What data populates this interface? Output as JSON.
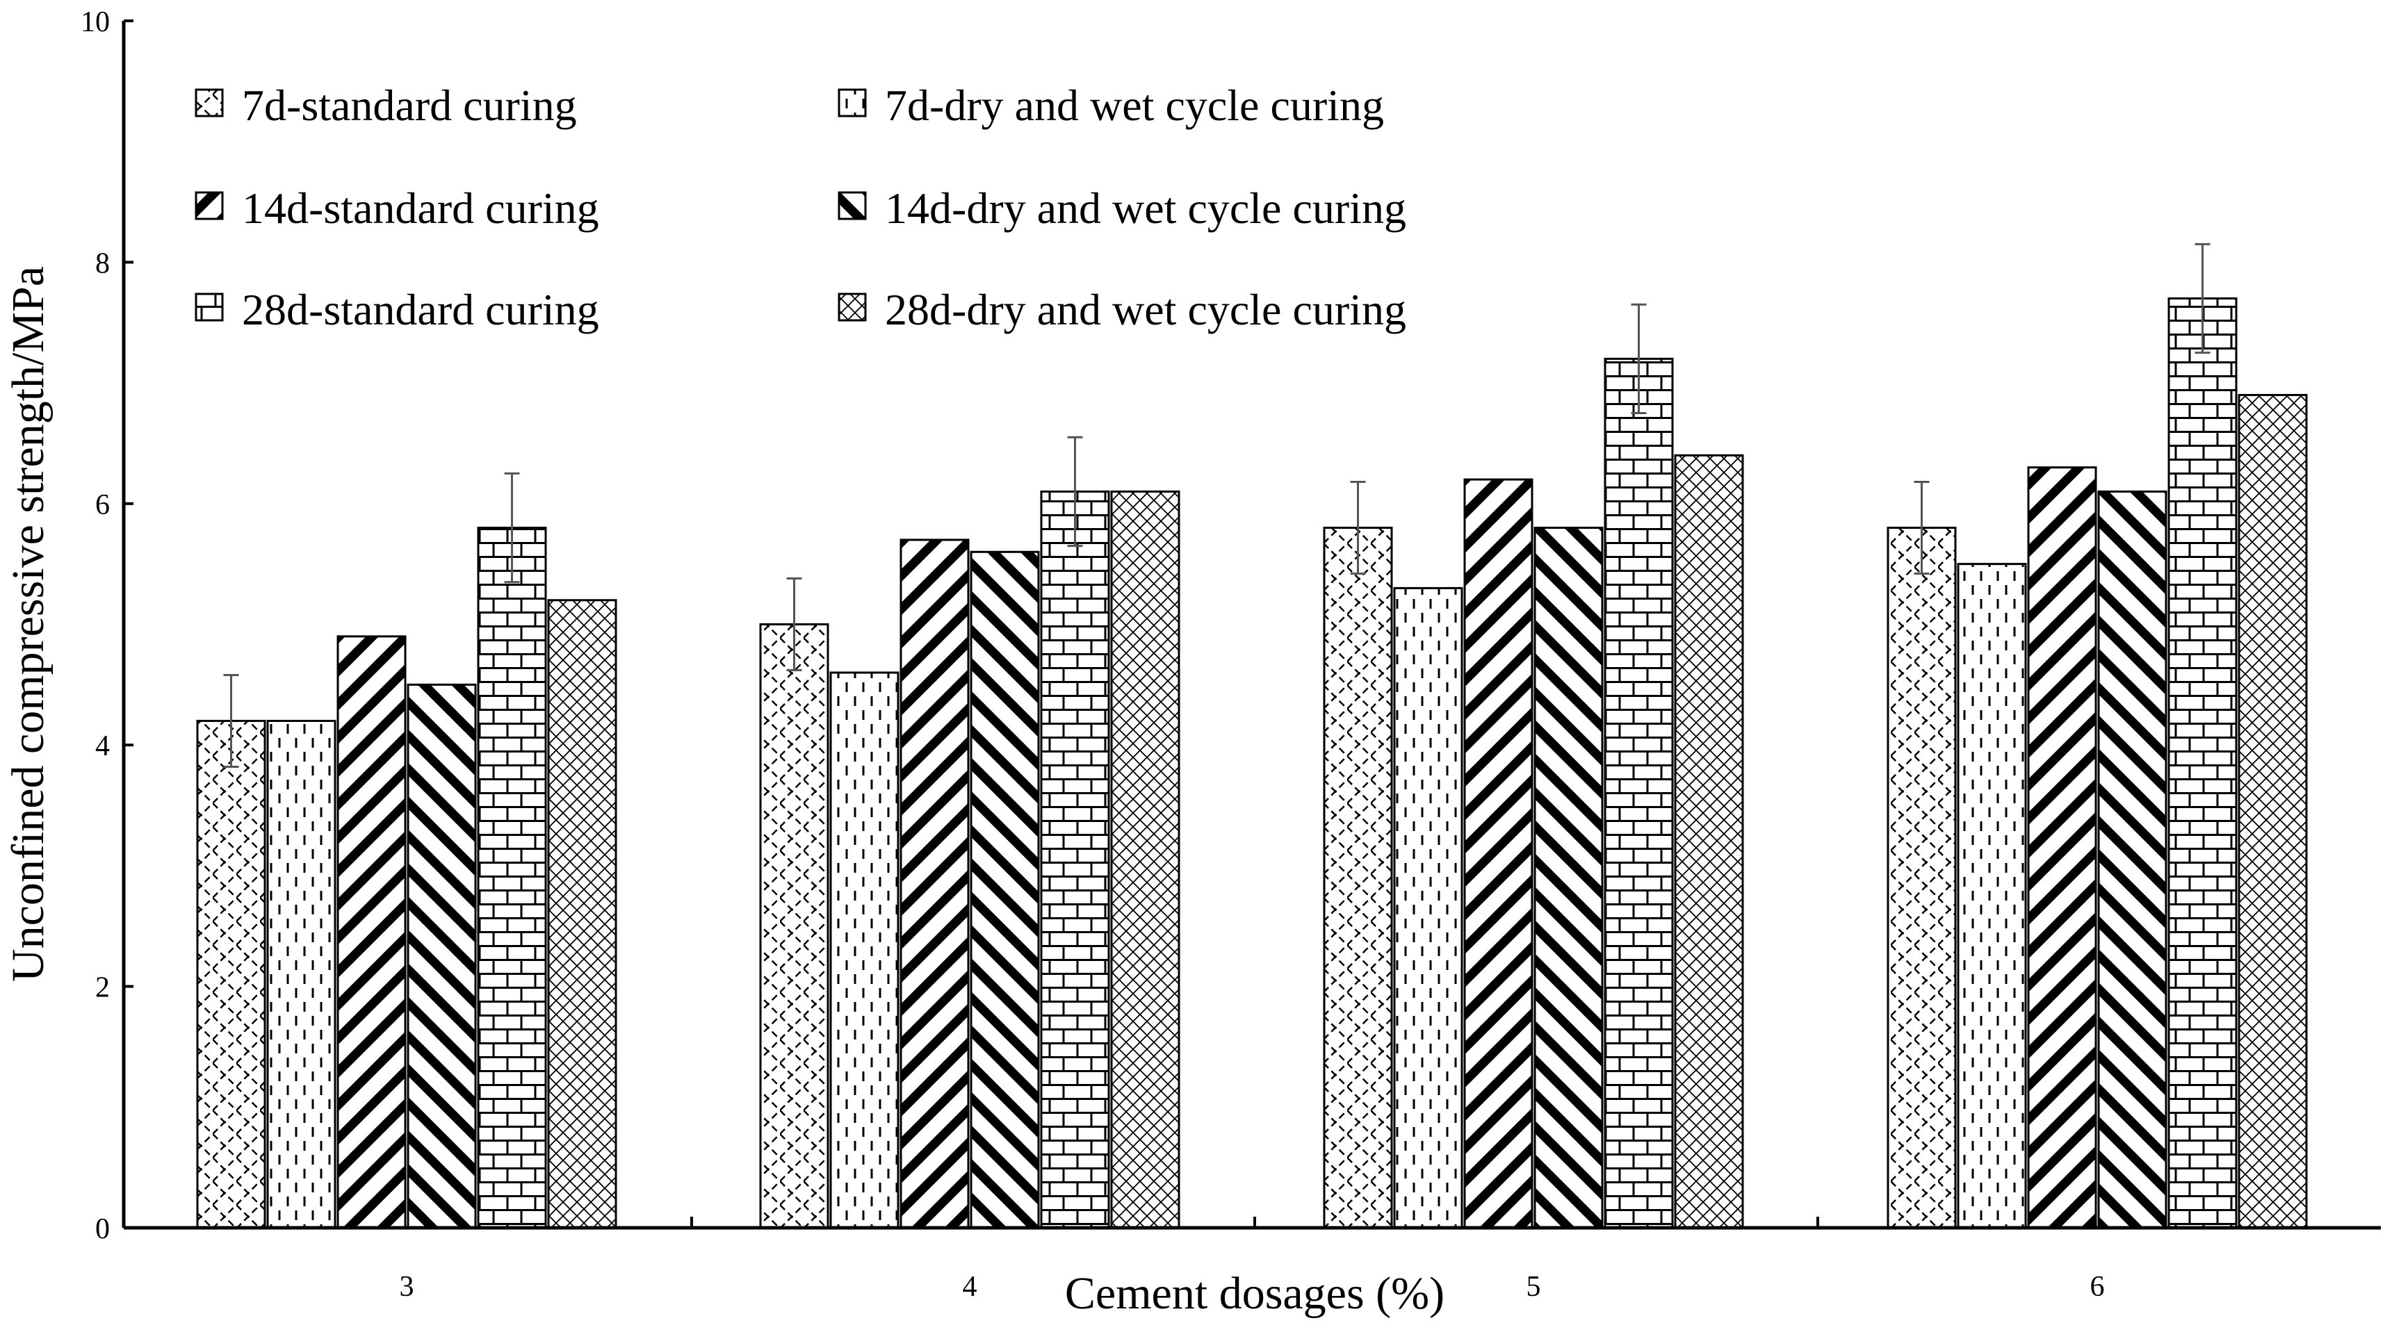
{
  "chart_data": {
    "type": "bar",
    "title": "",
    "xlabel": "Cement dosages (%)",
    "ylabel": "Unconfined compressive strength/MPa",
    "ylim": [
      0,
      10
    ],
    "yticks": [
      "0",
      "2",
      "4",
      "6",
      "8",
      "10"
    ],
    "categories": [
      "3",
      "4",
      "5",
      "6"
    ],
    "legend_position": "top-left",
    "grid": false,
    "series": [
      {
        "name": "7d-standard curing",
        "pattern": "diag-cross",
        "values": [
          4.2,
          5.0,
          5.8,
          5.8
        ],
        "errors": [
          0.38,
          0.38,
          0.38,
          0.38
        ]
      },
      {
        "name": "7d-dry and wet cycle curing",
        "pattern": "dashes",
        "values": [
          4.2,
          4.6,
          5.3,
          5.5
        ]
      },
      {
        "name": "14d-standard curing",
        "pattern": "diag-down",
        "values": [
          4.9,
          5.7,
          6.2,
          6.3
        ]
      },
      {
        "name": "14d-dry and wet cycle curing",
        "pattern": "diag-up",
        "values": [
          4.5,
          5.6,
          5.8,
          6.1
        ]
      },
      {
        "name": "28d-standard curing",
        "pattern": "brick",
        "values": [
          5.8,
          6.1,
          7.2,
          7.7
        ],
        "errors": [
          0.45,
          0.45,
          0.45,
          0.45
        ]
      },
      {
        "name": "28d-dry and wet cycle curing",
        "pattern": "checker",
        "values": [
          5.2,
          6.1,
          6.4,
          6.9
        ]
      }
    ]
  },
  "colors": {
    "ink": "#000000",
    "background": "#ffffff",
    "errorbar": "#555555"
  }
}
